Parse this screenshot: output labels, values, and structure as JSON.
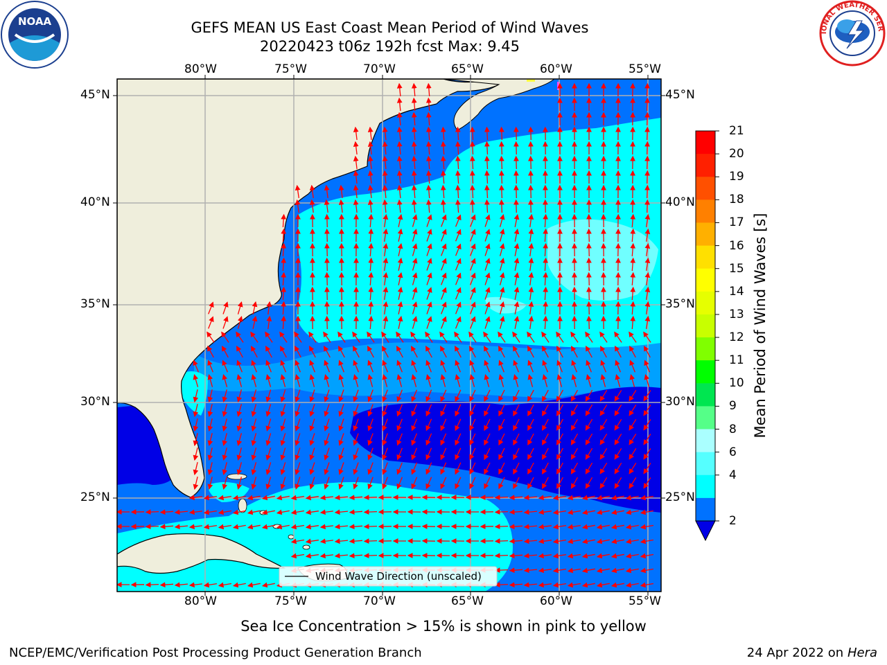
{
  "header": {
    "title_line1": "GEFS MEAN US East Coast Mean Period of Wind Waves",
    "title_line2": "20220423 t06z 192h fcst   Max: 9.45"
  },
  "logos": {
    "left": {
      "name": "noaa-logo",
      "text": "NOAA"
    },
    "right": {
      "name": "nws-logo",
      "text": "NATIONAL WEATHER SERVICE"
    }
  },
  "map": {
    "lon_labels": [
      "80°W",
      "75°W",
      "70°W",
      "65°W",
      "60°W",
      "55°W"
    ],
    "lat_labels": [
      "45°N",
      "40°N",
      "35°N",
      "30°N",
      "25°N"
    ],
    "legend_label": "Wind Wave Direction (unscaled)",
    "colors": {
      "land": "#efeedc",
      "band_2_4": "#0072ff",
      "band_0_2": "#0000e6",
      "band_4_6": "#00ffff",
      "band_6_8": "#55ffff",
      "arrow": "#ff0000",
      "grid": "#b0b0b0"
    }
  },
  "colorbar": {
    "label": "Mean Period of Wind Waves [s]",
    "ticks": [
      "21",
      "20",
      "19",
      "18",
      "17",
      "16",
      "15",
      "14",
      "13",
      "12",
      "11",
      "10",
      "9",
      "8",
      "6",
      "4",
      "2"
    ],
    "colors": [
      "#ff0000",
      "#ff2000",
      "#ff5000",
      "#ff8000",
      "#ffb000",
      "#ffe000",
      "#ffff00",
      "#e6ff00",
      "#c8ff00",
      "#80ff00",
      "#00ff00",
      "#00e650",
      "#55ff88",
      "#aaffff",
      "#55ffff",
      "#00ffff",
      "#0072ff"
    ],
    "extend_color": "#0000e6"
  },
  "notes": {
    "sea_ice": "Sea Ice Concentration > 15% is shown in pink to yellow",
    "credit": "NCEP/EMC/Verification Post Processing Product Generation Branch",
    "date": "24 Apr 2022 on",
    "machine": "Hera"
  }
}
